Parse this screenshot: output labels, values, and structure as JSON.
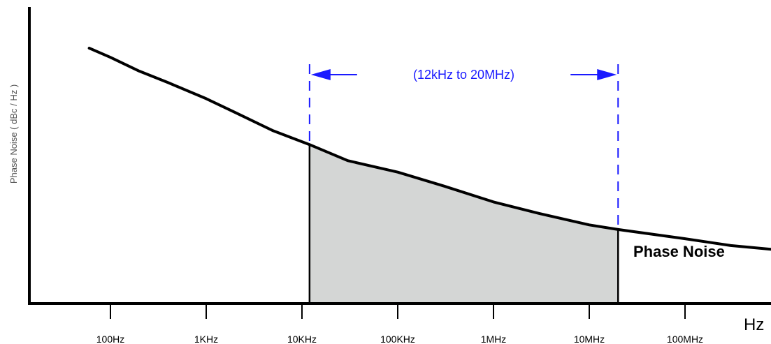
{
  "chart_data": {
    "type": "line",
    "title": "",
    "xlabel": "Hz",
    "ylabel": "Phase Noise ( dBc / Hz )",
    "x_scale": "log",
    "xlim": [
      50,
      1000000000
    ],
    "xticks": [
      {
        "value": 100,
        "label": "100Hz"
      },
      {
        "value": 1000,
        "label": "1KHz"
      },
      {
        "value": 10000,
        "label": "10KHz"
      },
      {
        "value": 100000,
        "label": "100KHz"
      },
      {
        "value": 1000000,
        "label": "1MHz"
      },
      {
        "value": 10000000,
        "label": "10MHz"
      },
      {
        "value": 100000000,
        "label": "100MHz"
      }
    ],
    "y_relative_range": [
      0,
      100
    ],
    "grid": false,
    "series": [
      {
        "name": "Phase Noise",
        "x": [
          60,
          100,
          200,
          400,
          1000,
          2000,
          5000,
          12000,
          30000,
          100000,
          300000,
          1000000,
          3000000,
          10000000,
          20000000,
          100000000,
          300000000,
          1000000000
        ],
        "y": [
          100,
          96,
          90,
          85,
          78,
          72,
          64,
          58,
          51,
          46,
          40,
          33,
          28,
          23,
          21,
          17,
          14,
          12
        ]
      }
    ],
    "integration_band": {
      "start": 12000,
      "end": 20000000,
      "label": "(12kHz to 20MHz)",
      "fill_color": "#d4d6d5",
      "annotation_color": "#1a1aff"
    },
    "colors": {
      "line": "#000000",
      "axis": "#000000"
    }
  }
}
